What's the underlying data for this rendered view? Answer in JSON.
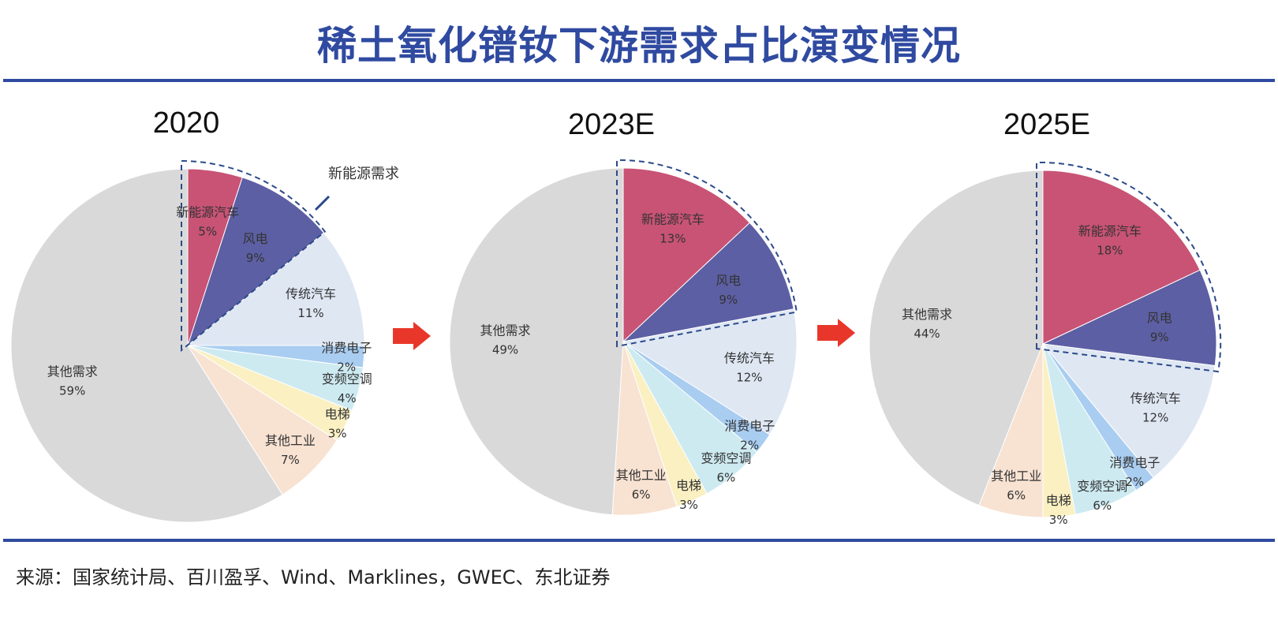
{
  "title": "稀土氧化镨钕下游需求占比演变情况",
  "source": "来源：国家统计局、百川盈孚、Wind、Marklines，GWEC、东北证券",
  "callout_label": "新能源需求",
  "colors": {
    "title": "#2f4aa0",
    "rule": "#2f4aa0",
    "arrow": "#e8372a",
    "dash": "#2b4a8b"
  },
  "chart_data": [
    {
      "type": "pie",
      "title": "2020",
      "slices": [
        {
          "label": "新能源汽车",
          "value": 5,
          "display": "5%",
          "color": "#c85375"
        },
        {
          "label": "风电",
          "value": 9,
          "display": "9%",
          "color": "#5c5fa3"
        },
        {
          "label": "传统汽车",
          "value": 11,
          "display": "11%",
          "color": "#dfe7f3"
        },
        {
          "label": "消费电子",
          "value": 2,
          "display": "2%",
          "color": "#a9cdf0"
        },
        {
          "label": "变频空调",
          "value": 4,
          "display": "4%",
          "color": "#cdeaf1"
        },
        {
          "label": "电梯",
          "value": 3,
          "display": "3%",
          "color": "#faf0c2"
        },
        {
          "label": "其他工业",
          "value": 7,
          "display": "7%",
          "color": "#f8e2d2"
        },
        {
          "label": "其他需求",
          "value": 59,
          "display": "59%",
          "color": "#d9d9d9"
        }
      ],
      "highlight": [
        "新能源汽车",
        "风电"
      ]
    },
    {
      "type": "pie",
      "title": "2023E",
      "slices": [
        {
          "label": "新能源汽车",
          "value": 13,
          "display": "13%",
          "color": "#c85375"
        },
        {
          "label": "风电",
          "value": 9,
          "display": "9%",
          "color": "#5c5fa3"
        },
        {
          "label": "传统汽车",
          "value": 12,
          "display": "12%",
          "color": "#dfe7f3"
        },
        {
          "label": "消费电子",
          "value": 2,
          "display": "2%",
          "color": "#a9cdf0"
        },
        {
          "label": "变频空调",
          "value": 6,
          "display": "6%",
          "color": "#cdeaf1"
        },
        {
          "label": "电梯",
          "value": 3,
          "display": "3%",
          "color": "#faf0c2"
        },
        {
          "label": "其他工业",
          "value": 6,
          "display": "6%",
          "color": "#f8e2d2"
        },
        {
          "label": "其他需求",
          "value": 49,
          "display": "49%",
          "color": "#d9d9d9"
        }
      ],
      "highlight": [
        "新能源汽车",
        "风电"
      ]
    },
    {
      "type": "pie",
      "title": "2025E",
      "slices": [
        {
          "label": "新能源汽车",
          "value": 18,
          "display": "18%",
          "color": "#c85375"
        },
        {
          "label": "风电",
          "value": 9,
          "display": "9%",
          "color": "#5c5fa3"
        },
        {
          "label": "传统汽车",
          "value": 12,
          "display": "12%",
          "color": "#dfe7f3"
        },
        {
          "label": "消费电子",
          "value": 2,
          "display": "2%",
          "color": "#a9cdf0"
        },
        {
          "label": "变频空调",
          "value": 6,
          "display": "6%",
          "color": "#cdeaf1"
        },
        {
          "label": "电梯",
          "value": 3,
          "display": "3%",
          "color": "#faf0c2"
        },
        {
          "label": "其他工业",
          "value": 6,
          "display": "6%",
          "color": "#f8e2d2"
        },
        {
          "label": "其他需求",
          "value": 44,
          "display": "44%",
          "color": "#d9d9d9"
        }
      ],
      "highlight": [
        "新能源汽车",
        "风电"
      ]
    }
  ]
}
